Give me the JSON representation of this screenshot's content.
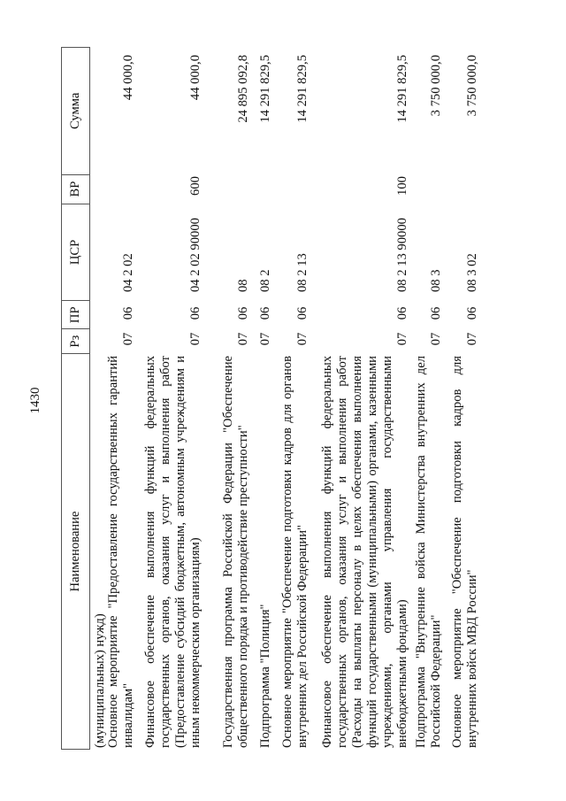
{
  "page_number": "1430",
  "table": {
    "headers": {
      "name": "Наименование",
      "rz": "Рз",
      "pr": "ПР",
      "csr": "ЦСР",
      "vr": "ВР",
      "sum": "Сумма"
    },
    "rows": [
      {
        "name": "(муниципальных) нужд)",
        "rz": "",
        "pr": "",
        "csr": "",
        "vr": "",
        "sum": ""
      },
      {
        "name": "Основное мероприятие \"Предоставление государственных гарантий инвалидам\"",
        "rz": "07",
        "pr": "06",
        "csr": "04 2 02",
        "vr": "",
        "sum": "44 000,0"
      },
      {
        "name": "Финансовое обеспечение выполнения функций федеральных государственных органов, оказания услуг и выполнения работ (Предоставление субсидий бюджетным, автономным учреждениям и иным некоммерческим организациям)",
        "rz": "07",
        "pr": "06",
        "csr": "04 2 02 90000",
        "vr": "600",
        "sum": "44 000,0"
      },
      {
        "name": "Государственная программа Российской Федерации \"Обеспечение общественного порядка и противодействие преступности\"",
        "rz": "07",
        "pr": "06",
        "csr": "08",
        "vr": "",
        "sum": "24 895 092,8"
      },
      {
        "name": "Подпрограмма \"Полиция\"",
        "rz": "07",
        "pr": "06",
        "csr": "08 2",
        "vr": "",
        "sum": "14 291 829,5"
      },
      {
        "name": "Основное мероприятие \"Обеспечение подготовки кадров для органов внутренних дел Российской Федерации\"",
        "rz": "07",
        "pr": "06",
        "csr": "08 2 13",
        "vr": "",
        "sum": "14 291 829,5"
      },
      {
        "name": "Финансовое обеспечение выполнения функций федеральных государственных органов, оказания услуг и выполнения работ (Расходы на выплаты персоналу в целях обеспечения выполнения функций государственными (муниципальными) органами, казенными учреждениями, органами управления государственными внебюджетными фондами)",
        "rz": "07",
        "pr": "06",
        "csr": "08 2 13 90000",
        "vr": "100",
        "sum": "14 291 829,5"
      },
      {
        "name": "Подпрограмма \"Внутренние войска Министерства внутренних дел Российской Федерации\"",
        "rz": "07",
        "pr": "06",
        "csr": "08 3",
        "vr": "",
        "sum": "3 750 000,0"
      },
      {
        "name": "Основное мероприятие \"Обеспечение подготовки кадров для внутренних войск МВД России\"",
        "rz": "07",
        "pr": "06",
        "csr": "08 3 02",
        "vr": "",
        "sum": "3 750 000,0"
      }
    ]
  }
}
